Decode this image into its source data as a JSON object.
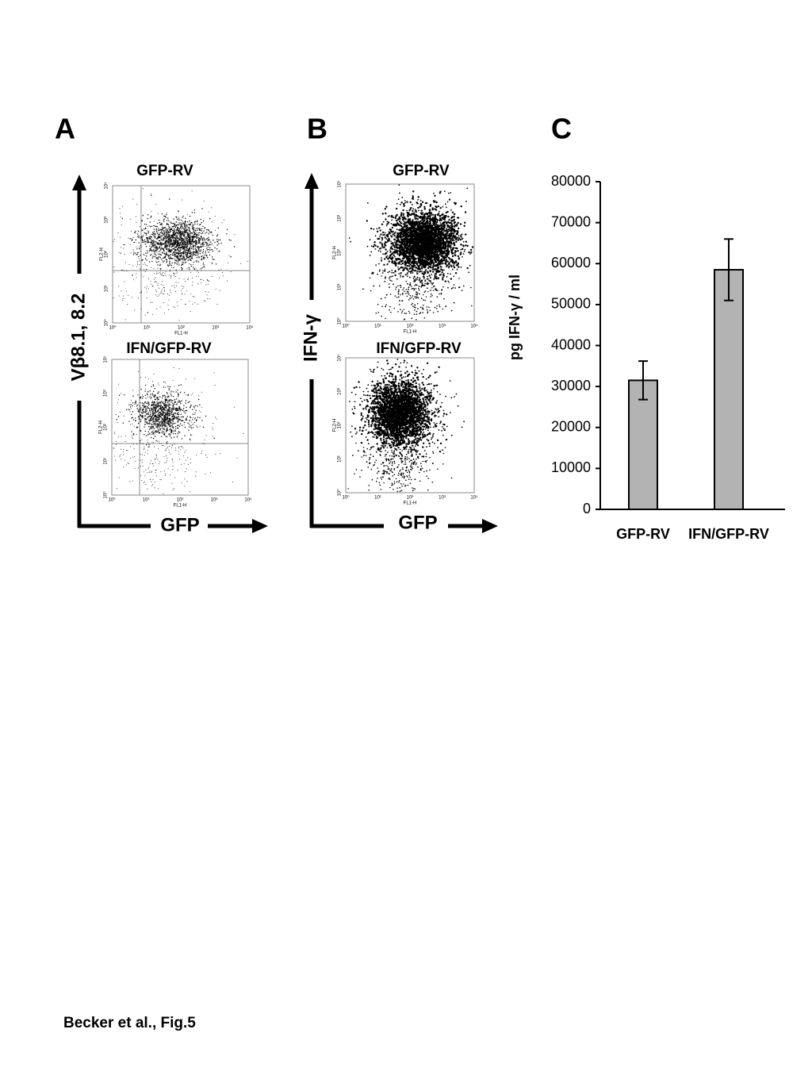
{
  "panels": [
    {
      "label": "A",
      "y_axis_label": "Vβ8.1, 8.2",
      "x_axis_label": "GFP",
      "plots": [
        {
          "title": "GFP-RV"
        },
        {
          "title": "IFN/GFP-RV"
        }
      ]
    },
    {
      "label": "B",
      "y_axis_label": "IFN-γ",
      "x_axis_label": "GFP",
      "plots": [
        {
          "title": "GFP-RV"
        },
        {
          "title": "IFN/GFP-RV"
        }
      ]
    }
  ],
  "flow_axes": {
    "ticks": [
      "10⁰",
      "10¹",
      "10²",
      "10³",
      "10⁴"
    ],
    "x_label": "FL1-H",
    "y_label": "FL2-H"
  },
  "chart_data": {
    "type": "bar",
    "panel_label": "C",
    "y_label": "pg IFN-γ / ml",
    "categories": [
      "GFP-RV",
      "IFN/GFP-RV"
    ],
    "values": [
      31500,
      58500
    ],
    "errors": [
      4700,
      7500
    ],
    "color": "#b3b3b3",
    "ylim": [
      0,
      80000
    ],
    "yticks": [
      0,
      10000,
      20000,
      30000,
      40000,
      50000,
      60000,
      70000,
      80000
    ]
  },
  "footer": "Becker et al., Fig.5"
}
